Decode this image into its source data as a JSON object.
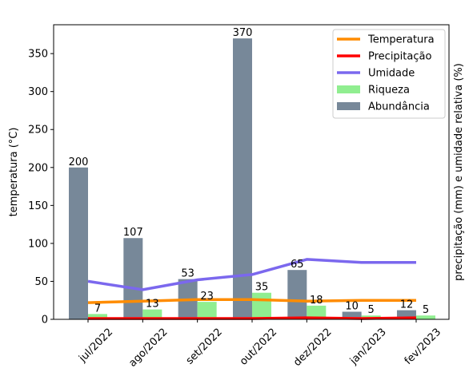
{
  "chart_data": {
    "type": "bar",
    "categories": [
      "jul/2022",
      "ago/2022",
      "set/2022",
      "out/2022",
      "dez/2022",
      "jan/2023",
      "fev/2023"
    ],
    "ylabel_left": "temperatura (°C)",
    "ylabel_right": "precipitação (mm) e umidade relativa (%)",
    "ylim": [
      0,
      388
    ],
    "yticks": [
      0,
      50,
      100,
      150,
      200,
      250,
      300,
      350
    ],
    "grid": false,
    "legend_placement": "top-right",
    "bar_series": [
      {
        "name": "Abundância",
        "color": "#778899",
        "offset": "left",
        "values": [
          200,
          107,
          53,
          370,
          65,
          10,
          12
        ],
        "labels": [
          "200",
          "107",
          "53",
          "370",
          "65",
          "10",
          "12"
        ]
      },
      {
        "name": "Riqueza",
        "color": "#90ee90",
        "offset": "right",
        "values": [
          7,
          13,
          23,
          35,
          18,
          5,
          5
        ],
        "labels": [
          "7",
          "13",
          "23",
          "35",
          "18",
          "5",
          "5"
        ]
      }
    ],
    "line_series": [
      {
        "name": "Temperatura",
        "color": "#ff8c00",
        "values": [
          22,
          24,
          26,
          26,
          24,
          25,
          25
        ]
      },
      {
        "name": "Precipitação",
        "color": "#ff0000",
        "values": [
          1,
          1,
          1,
          1,
          2,
          1,
          2
        ]
      },
      {
        "name": "Umidade",
        "color": "#7b68ee",
        "values": [
          50,
          39,
          52,
          59,
          79,
          75,
          75
        ]
      }
    ],
    "legend": [
      {
        "label": "Temperatura",
        "kind": "line",
        "color": "#ff8c00"
      },
      {
        "label": "Precipitação",
        "kind": "line",
        "color": "#ff0000"
      },
      {
        "label": "Umidade",
        "kind": "line",
        "color": "#7b68ee"
      },
      {
        "label": "Riqueza",
        "kind": "patch",
        "color": "#90ee90"
      },
      {
        "label": "Abundância",
        "kind": "patch",
        "color": "#778899"
      }
    ]
  }
}
